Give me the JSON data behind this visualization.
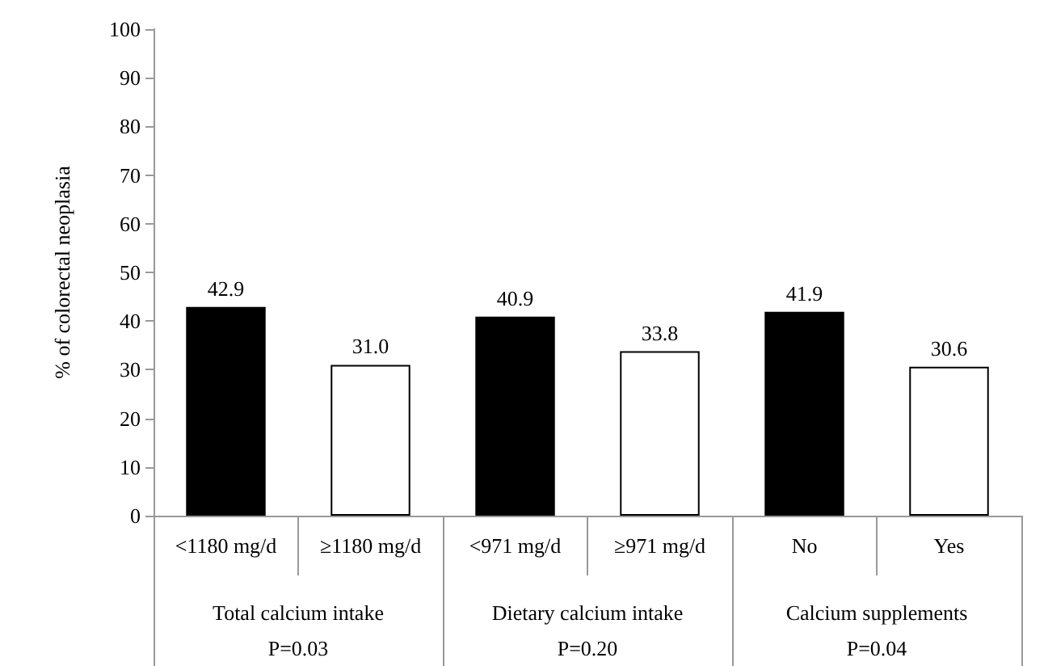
{
  "chart_data": {
    "type": "bar",
    "ylabel": "% of colorectal neoplasia",
    "categories": [
      "<1180 mg/d",
      "≥1180 mg/d",
      "<971 mg/d",
      "≥971 mg/d",
      "No",
      "Yes"
    ],
    "values": [
      42.9,
      31.0,
      40.9,
      33.8,
      41.9,
      30.6
    ],
    "value_labels": [
      "42.9",
      "31.0",
      "40.9",
      "33.8",
      "41.9",
      "30.6"
    ],
    "colors": [
      "#000000",
      "#ffffff",
      "#000000",
      "#ffffff",
      "#000000",
      "#ffffff"
    ],
    "annotations": [
      "Total calcium intake\nP=0.03",
      "Dietary calcium intake\nP=0.20",
      "Calcium supplements\nP=0.04"
    ],
    "ylim": [
      0,
      100
    ],
    "yticks": [
      0,
      10,
      20,
      30,
      40,
      50,
      60,
      70,
      80,
      90,
      100
    ],
    "grid": false
  }
}
